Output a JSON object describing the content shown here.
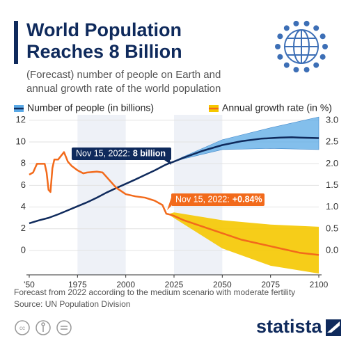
{
  "chart_data": {
    "type": "line",
    "title": [
      "World Population",
      "Reaches 8 Billion"
    ],
    "subtitle": [
      "(Forecast) number of people on Earth and",
      "annual growth rate of the world population"
    ],
    "xlim": [
      1950,
      2100
    ],
    "xticks": [
      {
        "value": 1950,
        "label": "'50"
      },
      1975,
      2000,
      2025,
      2050,
      2075,
      2100
    ],
    "ylim": [
      -2.25,
      12.5
    ],
    "yticks": [
      0,
      2,
      4,
      6,
      8,
      10,
      12
    ],
    "y2lim": [
      -0.56,
      3.13
    ],
    "y2ticks": [
      {
        "value": 0,
        "label": "0.0"
      },
      {
        "value": 0.5,
        "label": "0.5"
      },
      {
        "value": 1,
        "label": "1.0"
      },
      {
        "value": 1.5,
        "label": "1.5"
      },
      {
        "value": 2,
        "label": "2.0"
      },
      {
        "value": 2.5,
        "label": "2.5"
      },
      {
        "value": 3,
        "label": "3.0"
      }
    ],
    "grid": true,
    "series": [
      {
        "name": "Number of people (in billions)",
        "color": "#0f2a5c",
        "band_color": "#5aa9e6",
        "x": [
          1950,
          1955,
          1960,
          1965,
          1970,
          1975,
          1980,
          1985,
          1990,
          1995,
          2000,
          2005,
          2010,
          2015,
          2020,
          2022,
          2025,
          2030,
          2040,
          2050,
          2060,
          2070,
          2080,
          2086,
          2090,
          2100
        ],
        "values": [
          2.5,
          2.77,
          3.0,
          3.33,
          3.7,
          4.07,
          4.44,
          4.86,
          5.33,
          5.74,
          6.14,
          6.54,
          6.96,
          7.38,
          7.84,
          8.0,
          8.19,
          8.55,
          9.19,
          9.71,
          10.07,
          10.3,
          10.4,
          10.43,
          10.4,
          10.35
        ],
        "band_x": [
          2022,
          2030,
          2050,
          2075,
          2100
        ],
        "band_low": [
          8.0,
          8.45,
          9.3,
          9.4,
          9.3
        ],
        "band_high": [
          8.0,
          8.65,
          10.2,
          11.3,
          12.3
        ]
      },
      {
        "name": "Annual growth rate (in %)",
        "color": "#f26a1b",
        "band_color": "#f5c800",
        "axis": "y2",
        "x": [
          1950,
          1952,
          1954,
          1956,
          1958,
          1959,
          1960,
          1961,
          1962,
          1963,
          1965,
          1968,
          1970,
          1972,
          1975,
          1978,
          1980,
          1985,
          1988,
          1990,
          1995,
          2000,
          2005,
          2010,
          2015,
          2019,
          2020,
          2021,
          2022,
          2025,
          2030,
          2040,
          2050,
          2060,
          2070,
          2080,
          2090,
          2100
        ],
        "values": [
          1.75,
          1.8,
          2.0,
          2.0,
          2.0,
          1.8,
          1.4,
          1.35,
          1.9,
          2.1,
          2.1,
          2.27,
          2.05,
          1.95,
          1.85,
          1.78,
          1.8,
          1.82,
          1.8,
          1.7,
          1.45,
          1.3,
          1.25,
          1.22,
          1.15,
          1.05,
          0.95,
          0.85,
          0.84,
          0.8,
          0.7,
          0.55,
          0.4,
          0.25,
          0.15,
          0.05,
          -0.05,
          -0.1
        ],
        "band_x": [
          2022,
          2025,
          2050,
          2075,
          2100
        ],
        "band_low": [
          0.84,
          0.75,
          0.05,
          -0.35,
          -0.53
        ],
        "band_high": [
          0.84,
          0.88,
          0.7,
          0.6,
          0.55
        ]
      }
    ],
    "annotations": [
      {
        "text": "Nov 15, 2022:",
        "bold": "8 billion",
        "color": "#0f2a5c"
      },
      {
        "text": "Nov 15, 2022:",
        "bold": "+0.84%",
        "color": "#f26a1b"
      }
    ],
    "note": "Forecast from 2022 according to the medium scenario with moderate fertility",
    "source": "Source: UN Population Division",
    "brand": "statista"
  }
}
